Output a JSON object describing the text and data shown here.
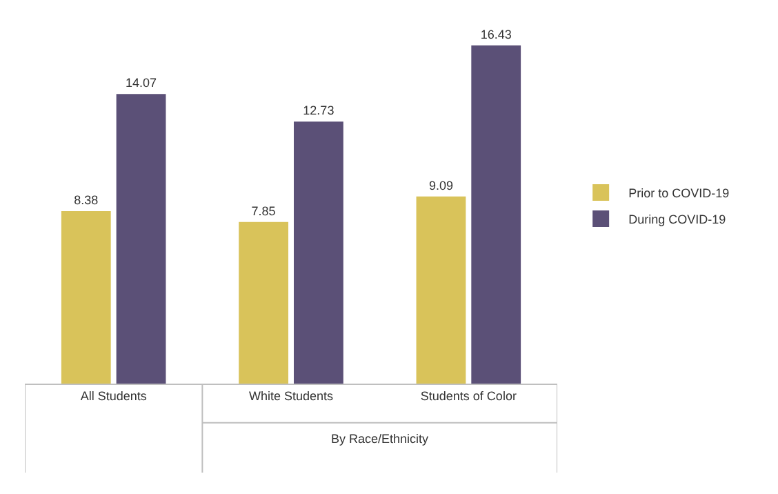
{
  "chart_data": {
    "type": "bar",
    "categories": [
      "All Students",
      "White Students",
      "Students of Color"
    ],
    "series": [
      {
        "name": "Prior to COVID-19",
        "color": "#d9c35a",
        "values": [
          8.38,
          7.85,
          9.09
        ]
      },
      {
        "name": "During COVID-19",
        "color": "#5b5077",
        "values": [
          14.07,
          12.73,
          16.43
        ]
      }
    ],
    "data_labels": true,
    "legend": "right",
    "grid": false,
    "annotations": [
      "By Race/Ethnicity"
    ]
  }
}
